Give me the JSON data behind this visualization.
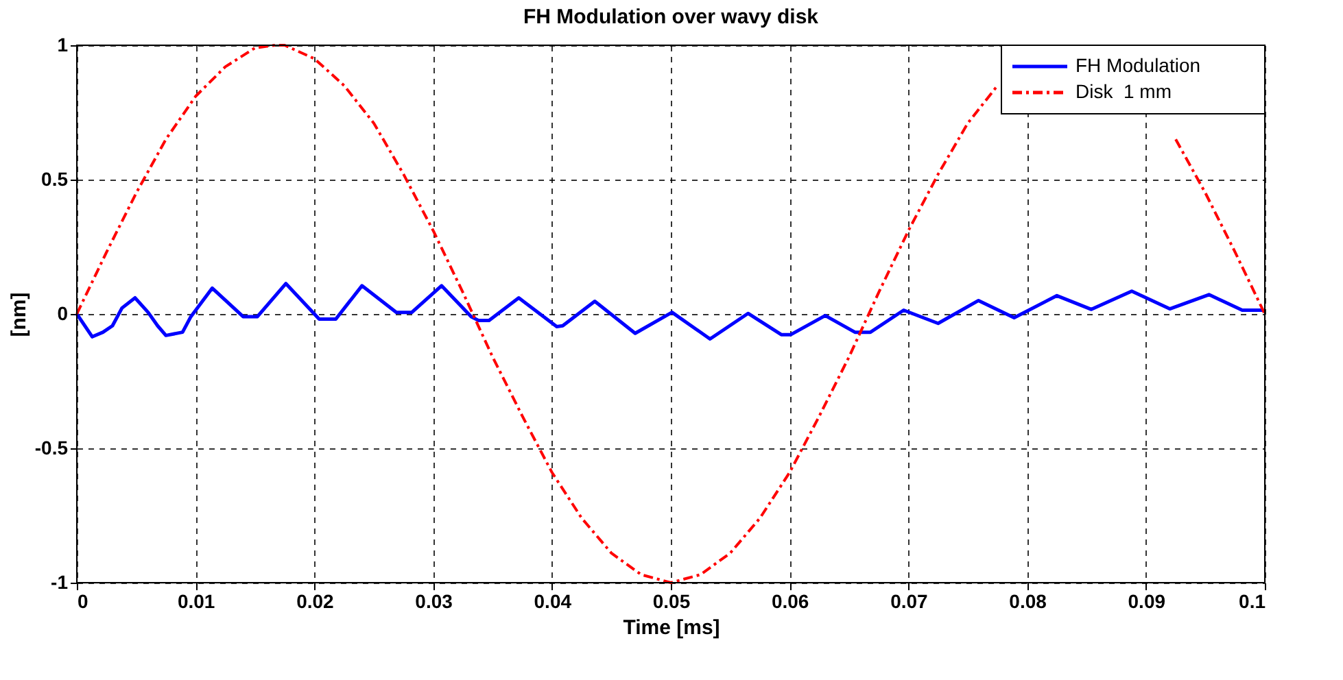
{
  "chart_data": {
    "type": "line",
    "title": "FH Modulation over wavy disk",
    "xlabel": "Time [ms]",
    "ylabel": "[nm]",
    "xlim": [
      0,
      0.1
    ],
    "ylim": [
      -1,
      1
    ],
    "xticks": [
      0,
      0.01,
      0.02,
      0.03,
      0.04,
      0.05,
      0.06,
      0.07,
      0.08,
      0.09,
      0.1
    ],
    "yticks": [
      -1,
      -0.5,
      0,
      0.5,
      1
    ],
    "grid": true,
    "legend": "top right",
    "marker": "none",
    "series": [
      {
        "name": "FH Modulation",
        "color": "#0000ff",
        "line_style": "solid",
        "x": [
          0,
          0.0013,
          0.0022,
          0.003,
          0.0038,
          0.0049,
          0.006,
          0.0068,
          0.0075,
          0.0089,
          0.0096,
          0.0114,
          0.014,
          0.0152,
          0.0176,
          0.0204,
          0.0218,
          0.024,
          0.0269,
          0.0282,
          0.0307,
          0.0332,
          0.0338,
          0.0347,
          0.0372,
          0.0404,
          0.0409,
          0.0436,
          0.047,
          0.0501,
          0.0533,
          0.0565,
          0.0593,
          0.0601,
          0.063,
          0.0655,
          0.0668,
          0.0696,
          0.0725,
          0.0759,
          0.0789,
          0.0825,
          0.0854,
          0.0888,
          0.092,
          0.0953,
          0.0981,
          0.0998,
          0.1
        ],
        "values": [
          0,
          -0.085,
          -0.068,
          -0.044,
          0.022,
          0.06,
          0.006,
          -0.044,
          -0.08,
          -0.068,
          -0.01,
          0.096,
          -0.01,
          -0.01,
          0.113,
          -0.019,
          -0.019,
          0.105,
          0.006,
          0.006,
          0.105,
          -0.01,
          -0.024,
          -0.024,
          0.06,
          -0.047,
          -0.044,
          0.047,
          -0.072,
          0.006,
          -0.093,
          0.002,
          -0.077,
          -0.077,
          -0.006,
          -0.068,
          -0.068,
          0.014,
          -0.035,
          0.05,
          -0.014,
          0.068,
          0.017,
          0.085,
          0.019,
          0.072,
          0.014,
          0.014,
          0.01
        ]
      },
      {
        "name": "Disk  1 mm",
        "color": "#ff0000",
        "line_style": "dashdot",
        "x": [
          0,
          0.0025,
          0.005,
          0.0075,
          0.01,
          0.0125,
          0.015,
          0.0167,
          0.0175,
          0.02,
          0.0225,
          0.025,
          0.0275,
          0.03,
          0.0325,
          0.035,
          0.0375,
          0.04,
          0.0425,
          0.045,
          0.0475,
          0.05,
          0.0525,
          0.055,
          0.0575,
          0.06,
          0.0625,
          0.065,
          0.0675,
          0.07,
          0.0725,
          0.075,
          0.0775,
          0.08,
          0.0825,
          0.0833,
          0.085,
          0.0875,
          0.09,
          0.0925,
          0.095,
          0.0975,
          0.1
        ],
        "values": [
          0,
          0.23,
          0.45,
          0.65,
          0.81,
          0.92,
          0.99,
          1,
          1,
          0.95,
          0.85,
          0.71,
          0.52,
          0.31,
          0.08,
          -0.16,
          -0.38,
          -0.59,
          -0.76,
          -0.89,
          -0.97,
          -1,
          -0.97,
          -0.89,
          -0.76,
          -0.59,
          -0.38,
          -0.16,
          0.08,
          0.31,
          0.52,
          0.71,
          0.85,
          null,
          null,
          null,
          null,
          null,
          null,
          0.65,
          0.45,
          0.23,
          0
        ]
      }
    ]
  }
}
